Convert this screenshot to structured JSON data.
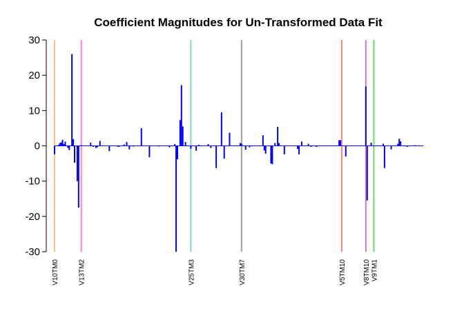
{
  "chart_data": {
    "type": "bar",
    "title": "Coefficient Magnitudes for Un-Transformed Data Fit",
    "xlabel": "",
    "ylabel": "",
    "ylim": [
      -30,
      30
    ],
    "yticks": [
      30,
      20,
      10,
      0,
      -10,
      -20,
      -30
    ],
    "bar_color": "#0000ff",
    "n_coefficients": 218,
    "series": [
      {
        "values": [
          -2.4,
          0.0,
          0.0,
          0.3,
          0.8,
          1.0,
          1.7,
          0.5,
          1.2,
          0.0,
          -0.6,
          -1.2,
          0.0,
          26.0,
          1.9,
          -4.8,
          0.0,
          -10.0,
          -17.5,
          0.0,
          0.2,
          0.0,
          0.0,
          0.0,
          0.0,
          0.0,
          0.0,
          0.9,
          0.0,
          -0.3,
          0.0,
          -0.6,
          -0.4,
          0.0,
          1.4,
          0.0,
          0.0,
          0.0,
          0.0,
          0.0,
          0.0,
          -1.5,
          0.0,
          0.0,
          0.0,
          0.0,
          0.0,
          -0.2,
          -0.3,
          0.0,
          0.0,
          0.0,
          0.4,
          0.0,
          1.1,
          0.0,
          -1.0,
          0.0,
          0.0,
          -0.2,
          0.0,
          0.0,
          0.0,
          0.0,
          0.0,
          5.0,
          0.0,
          0.0,
          0.0,
          0.0,
          0.0,
          -3.2,
          0.0,
          0.0,
          0.0,
          0.0,
          0.0,
          0.0,
          -0.2,
          0.0,
          0.0,
          0.0,
          0.0,
          0.0,
          0.0,
          0.0,
          -0.4,
          0.0,
          0.0,
          0.0,
          0.5,
          -30.0,
          -3.8,
          0.0,
          7.3,
          17.2,
          5.5,
          0.0,
          1.1,
          0.0,
          0.0,
          0.0,
          -0.8,
          0.0,
          0.0,
          0.0,
          -1.4,
          0.0,
          0.3,
          0.0,
          0.0,
          0.0,
          0.0,
          0.0,
          0.0,
          0.5,
          0.0,
          -0.6,
          0.0,
          0.0,
          0.0,
          -6.3,
          0.0,
          0.0,
          0.0,
          9.5,
          0.0,
          -3.6,
          0.0,
          0.0,
          0.0,
          3.7,
          0.0,
          0.0,
          0.0,
          0.0,
          0.0,
          0.0,
          0.0,
          0.8,
          0.6,
          0.0,
          0.0,
          -1.1,
          0.0,
          0.0,
          -0.4,
          0.0,
          0.0,
          0.0,
          0.0,
          0.0,
          0.0,
          0.0,
          0.0,
          0.0,
          3.0,
          -1.3,
          -2.2,
          0.0,
          0.0,
          0.0,
          -5.0,
          -5.2,
          0.0,
          0.8,
          0.0,
          5.4,
          0.8,
          0.0,
          0.0,
          0.0,
          -2.4,
          0.0,
          0.0,
          0.0,
          0.0,
          0.0,
          0.0,
          0.0,
          0.0,
          0.0,
          -0.9,
          -2.4,
          0.0,
          1.2,
          0.0,
          0.0,
          0.0,
          0.0,
          0.6,
          0.0,
          -0.3,
          0.0,
          0.0,
          0.0,
          -0.3,
          0.0,
          0.0,
          0.0,
          0.0,
          0.0,
          0.0,
          0.0,
          0.0,
          0.0,
          0.0,
          0.0,
          0.0,
          0.0,
          0.0,
          0.0,
          0.0,
          1.6,
          1.6,
          0.0,
          0.0,
          0.0,
          -3.0
        ]
      }
    ],
    "tail_bars": [
      {
        "index": 233,
        "value": 16.8
      },
      {
        "index": 234,
        "value": -15.5
      },
      {
        "index": 237,
        "value": 0.9
      },
      {
        "index": 241,
        "value": 0.0
      },
      {
        "index": 246,
        "value": 0.6
      },
      {
        "index": 247,
        "value": -6.3
      },
      {
        "index": 252,
        "value": -1.0
      },
      {
        "index": 257,
        "value": 0.6
      },
      {
        "index": 258,
        "value": 2.0
      },
      {
        "index": 259,
        "value": 1.3
      },
      {
        "index": 264,
        "value": -0.3
      },
      {
        "index": 270,
        "value": 0.2
      }
    ],
    "x_max": 276,
    "group_markers": [
      {
        "label": "V10TM0",
        "index": 0,
        "color": "#ffc080"
      },
      {
        "label": "V13TM2",
        "index": 20,
        "color": "#ff80e0"
      },
      {
        "label": "V25TM3",
        "index": 102,
        "color": "#80d8c8"
      },
      {
        "label": "V30TM7",
        "index": 140,
        "color": "#a0a0a0"
      },
      {
        "label": "V5TM10",
        "index": 215,
        "color": "#ff8080"
      },
      {
        "label": "V8TM10",
        "index": 233,
        "color": "#d070d0"
      },
      {
        "label": "V9TM1",
        "index": 239,
        "color": "#60e060"
      }
    ]
  }
}
